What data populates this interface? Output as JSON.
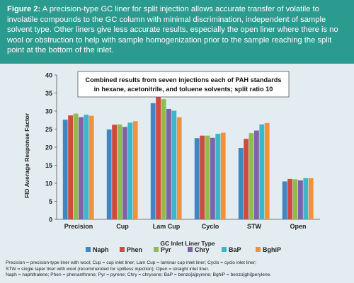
{
  "caption": {
    "label": "Figure 2:",
    "text": "A precision-type GC liner for split injection allows accurate transfer of volatile to involatile compounds to the GC column with minimal discrimination, independent of sample solvent type. Other liners give less accurate results, especially the open liner where there is no wool or obstruction to help with sample homogenization prior to the sample reaching the split point at the bottom of the inlet."
  },
  "colors": {
    "band": "#2b9a8f",
    "background": "#e3ecf0",
    "series": [
      "#3f86c4",
      "#cf4a3f",
      "#8fbc4a",
      "#7f62a8",
      "#3cb6cc",
      "#f0913c"
    ]
  },
  "chart_data": {
    "type": "bar",
    "annotation": "Combined results from seven injections each of PAH standards in hexane, acetonitrile, and toluene solvents; split ratio 10",
    "xlabel": "GC Inlet Liner Type",
    "ylabel": "FID Average Response Factor",
    "ylim": [
      0,
      40
    ],
    "yticks": [
      0,
      5,
      10,
      15,
      20,
      25,
      30,
      35,
      40
    ],
    "grid": false,
    "legend_position": "bottom",
    "categories": [
      "Precision",
      "Cup",
      "Lam Cup",
      "Cyclo",
      "STW",
      "Open"
    ],
    "series": [
      {
        "name": "Naph",
        "values": [
          27.6,
          24.9,
          32.2,
          22.5,
          19.8,
          10.5
        ]
      },
      {
        "name": "Phen",
        "values": [
          28.8,
          26.2,
          34.0,
          23.2,
          22.3,
          11.2
        ]
      },
      {
        "name": "Pyr",
        "values": [
          29.3,
          26.3,
          33.3,
          23.2,
          23.9,
          11.1
        ]
      },
      {
        "name": "Chry",
        "values": [
          28.3,
          25.6,
          30.6,
          22.6,
          24.6,
          10.8
        ]
      },
      {
        "name": "BaP",
        "values": [
          29.0,
          26.8,
          30.1,
          23.7,
          26.3,
          11.4
        ]
      },
      {
        "name": "BghiP",
        "values": [
          28.7,
          27.2,
          28.3,
          24.0,
          26.7,
          11.4
        ]
      }
    ]
  },
  "footnote": {
    "line1": "Precision = precision-type liner with wool; Cup = cup inlet liner; Lam Cup = laminar cup inlet liner; Cyclo = cyclo inlet liner;",
    "line2": "STW = single taper liner with wool (recommended for splitless injection); Open = straight inlet liner.",
    "line3": "Naph = naphthalene; Phen = phenanthrene; Pyr = pyrene; Chry = chrysene; BaP = benzo[a]pyrene; BghiP = benzo[ghi]perylene."
  }
}
